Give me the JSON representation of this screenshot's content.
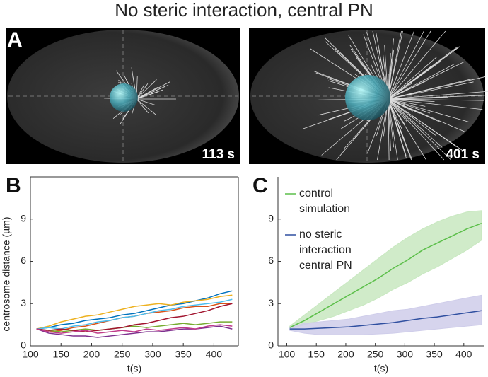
{
  "title": "No steric interaction, central PN",
  "panel_a": {
    "label": "A",
    "images": [
      {
        "time_label": "113 s"
      },
      {
        "time_label": "401 s"
      }
    ]
  },
  "chart_data": [
    {
      "type": "line",
      "panel_label": "B",
      "ylabel": "centrosome distance (µm)",
      "xlabel": "t(s)",
      "xlim": [
        100,
        440
      ],
      "ylim": [
        0,
        12
      ],
      "xticks": [
        100,
        150,
        200,
        250,
        300,
        350,
        400
      ],
      "yticks": [
        0,
        3,
        6,
        9
      ],
      "box": true,
      "x": [
        110,
        130,
        150,
        170,
        190,
        210,
        230,
        250,
        270,
        290,
        310,
        330,
        350,
        370,
        390,
        410,
        430
      ],
      "series": [
        {
          "color": "#0072BD",
          "values": [
            1.2,
            1.3,
            1.5,
            1.6,
            1.8,
            1.9,
            2.0,
            2.2,
            2.3,
            2.5,
            2.7,
            2.9,
            3.0,
            3.2,
            3.4,
            3.7,
            3.9
          ]
        },
        {
          "color": "#D95319",
          "values": [
            1.2,
            1.0,
            1.1,
            1.3,
            1.4,
            1.6,
            1.8,
            2.0,
            2.1,
            2.3,
            2.4,
            2.5,
            2.7,
            2.8,
            2.8,
            3.0,
            3.0
          ]
        },
        {
          "color": "#EDB120",
          "values": [
            1.2,
            1.4,
            1.7,
            1.9,
            2.1,
            2.2,
            2.4,
            2.6,
            2.8,
            2.9,
            3.0,
            2.9,
            3.1,
            3.2,
            3.3,
            3.5,
            3.6
          ]
        },
        {
          "color": "#7E2F8E",
          "values": [
            1.2,
            0.9,
            0.8,
            0.7,
            0.7,
            0.6,
            0.7,
            0.8,
            0.9,
            1.0,
            1.0,
            1.1,
            1.2,
            1.2,
            1.3,
            1.4,
            1.2
          ]
        },
        {
          "color": "#77AC30",
          "values": [
            1.2,
            1.1,
            1.0,
            1.1,
            1.2,
            1.1,
            1.2,
            1.3,
            1.4,
            1.3,
            1.4,
            1.5,
            1.6,
            1.5,
            1.6,
            1.7,
            1.7
          ]
        },
        {
          "color": "#4DBEEE",
          "values": [
            1.2,
            1.3,
            1.2,
            1.4,
            1.5,
            1.7,
            1.8,
            2.0,
            2.1,
            2.3,
            2.5,
            2.6,
            2.8,
            2.9,
            3.0,
            3.1,
            3.3
          ]
        },
        {
          "color": "#A2142F",
          "values": [
            1.2,
            1.1,
            1.2,
            1.1,
            1.0,
            1.1,
            1.2,
            1.3,
            1.5,
            1.6,
            1.8,
            2.0,
            2.1,
            2.3,
            2.5,
            2.8,
            3.0
          ]
        },
        {
          "color": "#C03B8A",
          "values": [
            1.2,
            1.0,
            0.9,
            1.0,
            1.1,
            0.9,
            1.0,
            1.1,
            1.0,
            1.2,
            1.1,
            1.2,
            1.3,
            1.2,
            1.4,
            1.5,
            1.4
          ]
        }
      ]
    },
    {
      "type": "line",
      "panel_label": "C",
      "xlabel": "t(s)",
      "xlim": [
        85,
        435
      ],
      "ylim": [
        0,
        12
      ],
      "xticks": [
        100,
        150,
        200,
        250,
        300,
        350,
        400
      ],
      "yticks": [
        0,
        3,
        6,
        9
      ],
      "box": false,
      "x": [
        105,
        130,
        155,
        180,
        205,
        230,
        255,
        280,
        305,
        330,
        355,
        380,
        405,
        430
      ],
      "series": [
        {
          "name": "control simulation",
          "color": "#5cbf4a",
          "band_color": "#c8e8c0",
          "values": [
            1.3,
            1.8,
            2.4,
            3.0,
            3.6,
            4.2,
            4.8,
            5.5,
            6.1,
            6.8,
            7.3,
            7.8,
            8.3,
            8.7
          ],
          "lower": [
            1.2,
            1.5,
            1.8,
            2.1,
            2.5,
            2.9,
            3.4,
            4.0,
            4.5,
            5.1,
            5.6,
            6.2,
            6.8,
            7.5
          ],
          "upper": [
            1.4,
            2.2,
            3.0,
            3.8,
            4.6,
            5.4,
            6.2,
            7.0,
            7.7,
            8.3,
            8.8,
            9.2,
            9.5,
            9.6
          ]
        },
        {
          "name": "no steric interaction central PN",
          "color": "#2f4fa0",
          "band_color": "#cfcdea",
          "values": [
            1.2,
            1.2,
            1.25,
            1.3,
            1.35,
            1.45,
            1.55,
            1.65,
            1.8,
            1.95,
            2.05,
            2.2,
            2.35,
            2.5
          ],
          "lower": [
            1.1,
            0.9,
            0.8,
            0.8,
            0.8,
            0.8,
            0.85,
            0.9,
            1.0,
            1.1,
            1.2,
            1.3,
            1.4,
            1.5
          ],
          "upper": [
            1.3,
            1.6,
            1.7,
            1.8,
            1.9,
            2.1,
            2.3,
            2.5,
            2.6,
            2.8,
            3.0,
            3.2,
            3.4,
            3.6
          ]
        }
      ]
    }
  ]
}
